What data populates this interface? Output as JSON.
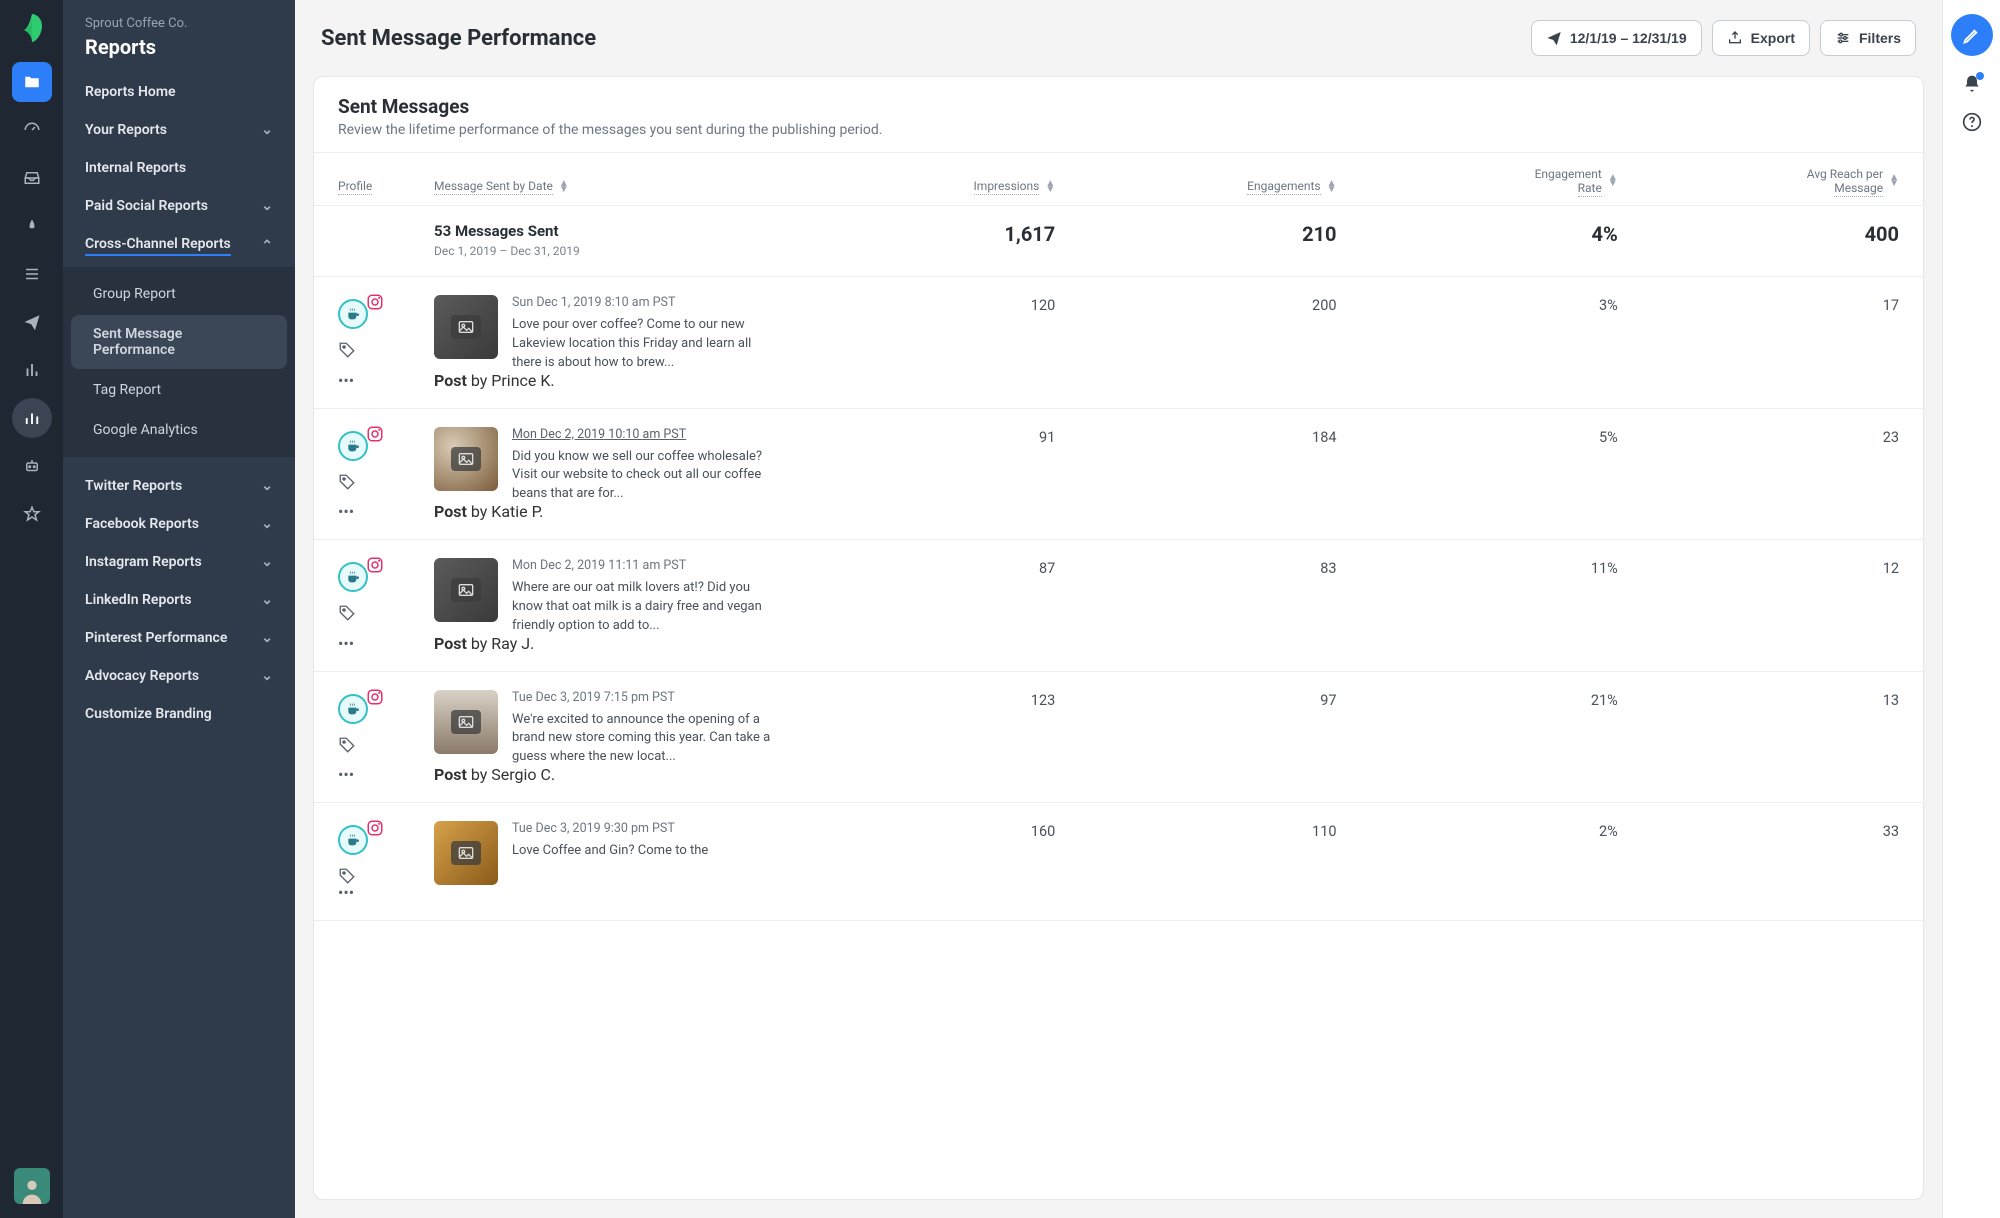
{
  "colors": {
    "rail_bg": "#1f2733",
    "sidebar_bg": "#2f3a4a",
    "accent": "#2d7ff9",
    "teal": "#34c0c7",
    "instagram": "#e1306c",
    "text_muted": "#6c7683"
  },
  "org": {
    "name": "Sprout Coffee Co.",
    "section": "Reports"
  },
  "rail": {
    "items": [
      {
        "name": "folder-icon",
        "active": false,
        "highlighted": true
      },
      {
        "name": "gauge-icon",
        "active": false
      },
      {
        "name": "inbox-icon",
        "active": false
      },
      {
        "name": "pin-icon",
        "active": false
      },
      {
        "name": "list-icon",
        "active": false
      },
      {
        "name": "send-icon",
        "active": false
      },
      {
        "name": "bars-icon",
        "active": false
      },
      {
        "name": "chart-icon",
        "active": true
      },
      {
        "name": "robot-icon",
        "active": false
      },
      {
        "name": "star-icon",
        "active": false
      }
    ]
  },
  "sidebar": {
    "items": [
      {
        "label": "Reports Home",
        "expandable": false
      },
      {
        "label": "Your Reports",
        "expandable": true
      },
      {
        "label": "Internal Reports",
        "expandable": false
      },
      {
        "label": "Paid Social Reports",
        "expandable": true
      },
      {
        "label": "Cross-Channel Reports",
        "expandable": true,
        "expanded": true,
        "underlined": true
      }
    ],
    "sub": [
      {
        "label": "Group Report"
      },
      {
        "label": "Sent Message Performance",
        "active": true
      },
      {
        "label": "Tag Report"
      },
      {
        "label": "Google Analytics"
      }
    ],
    "items2": [
      {
        "label": "Twitter Reports",
        "expandable": true
      },
      {
        "label": "Facebook Reports",
        "expandable": true
      },
      {
        "label": "Instagram Reports",
        "expandable": true
      },
      {
        "label": "LinkedIn Reports",
        "expandable": true
      },
      {
        "label": "Pinterest Performance",
        "expandable": true
      },
      {
        "label": "Advocacy Reports",
        "expandable": true
      },
      {
        "label": "Customize Branding",
        "expandable": false
      }
    ]
  },
  "topbar": {
    "title": "Sent Message Performance",
    "date_range": "12/1/19 – 12/31/19",
    "export_label": "Export",
    "filters_label": "Filters"
  },
  "panel": {
    "title": "Sent Messages",
    "subtitle": "Review the lifetime performance of the messages you sent during the publishing period."
  },
  "table": {
    "columns": {
      "profile": "Profile",
      "message": "Message Sent by Date",
      "impressions": "Impressions",
      "engagements": "Engagements",
      "engagement_rate_line1": "Engagement",
      "engagement_rate_line2": "Rate",
      "reach_line1": "Avg Reach per",
      "reach_line2": "Message"
    },
    "summary": {
      "title": "53 Messages Sent",
      "range": "Dec 1, 2019 – Dec 31, 2019",
      "impressions": "1,617",
      "engagements": "210",
      "engagement_rate": "4%",
      "reach": "400"
    },
    "rows": [
      {
        "date": "Sun Dec 1, 2019 8:10 am PST",
        "date_link": false,
        "body": "Love pour over coffee? Come to our new Lakeview location this Friday and learn all there is about how to brew...",
        "author": "Prince K.",
        "author_color": "blue",
        "thumb_class": "dark",
        "impressions": "120",
        "engagements": "200",
        "engagement_rate": "3%",
        "reach": "17"
      },
      {
        "date": "Mon Dec 2, 2019 10:10 am PST",
        "date_link": true,
        "body": "Did you know we sell our coffee wholesale? Visit our website to check out all our coffee beans that are for...",
        "author": "Katie P.",
        "author_color": "",
        "thumb_class": "beans",
        "impressions": "91",
        "engagements": "184",
        "engagement_rate": "5%",
        "reach": "23"
      },
      {
        "date": "Mon Dec 2, 2019 11:11 am PST",
        "date_link": false,
        "body": "Where are our oat milk lovers at!? Did you know that oat milk is a dairy free and vegan friendly option to add to...",
        "author": "Ray J.",
        "author_color": "purple",
        "thumb_class": "dark",
        "impressions": "87",
        "engagements": "83",
        "engagement_rate": "11%",
        "reach": "12"
      },
      {
        "date": "Tue Dec 3, 2019 7:15 pm PST",
        "date_link": false,
        "body": "We're excited to announce the opening of a brand new store coming this year. Can take a guess where the new locat...",
        "author": "Sergio C.",
        "author_color": "orange",
        "thumb_class": "store",
        "impressions": "123",
        "engagements": "97",
        "engagement_rate": "21%",
        "reach": "13"
      },
      {
        "date": "Tue Dec 3, 2019 9:30 pm PST",
        "date_link": false,
        "body": "Love Coffee and Gin? Come to the",
        "author": "",
        "author_color": "",
        "thumb_class": "gin",
        "impressions": "160",
        "engagements": "110",
        "engagement_rate": "2%",
        "reach": "33"
      }
    ],
    "post_label": "Post",
    "by_label": "by"
  }
}
